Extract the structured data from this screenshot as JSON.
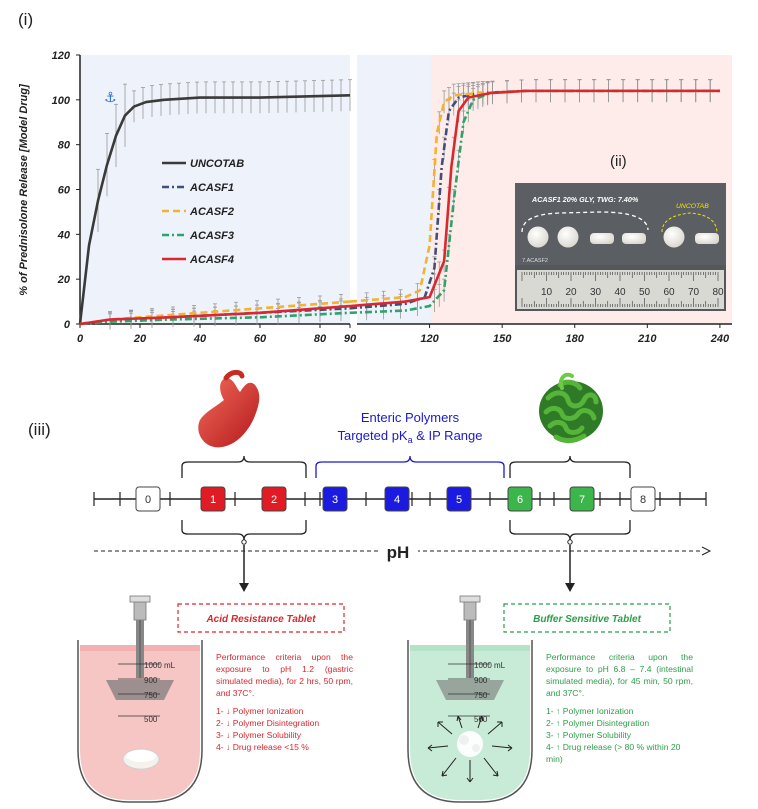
{
  "panel_labels": {
    "i": "(i)",
    "ii": "(ii)",
    "iii": "(iii)"
  },
  "chart_data": {
    "type": "line",
    "ylabel": "% of Prednisolone Release [Model Drug]",
    "xlabel": "",
    "ylim": [
      0,
      120
    ],
    "y_ticks": [
      0,
      20,
      40,
      60,
      80,
      100,
      120
    ],
    "x_ticks_left": [
      0,
      20,
      40,
      60,
      80
    ],
    "x_ticks_right": [
      90,
      120,
      150,
      180,
      210,
      240
    ],
    "broken_x_axis": true,
    "acid_phase_x": [
      0,
      120
    ],
    "buffer_phase_x": [
      120,
      245
    ],
    "legend_position": "center-left",
    "grid": false,
    "error_bars": true,
    "series": [
      {
        "name": "UNCOTAB",
        "color": "#3a3a3a",
        "dash": "solid",
        "x": [
          0,
          3,
          6,
          9,
          12,
          15,
          18,
          22,
          28,
          40,
          60,
          90
        ],
        "y": [
          0,
          35,
          55,
          71,
          84,
          93,
          97,
          99,
          100,
          101,
          101,
          102
        ]
      },
      {
        "name": "ACASF1",
        "color": "#3e4f7c",
        "dash": "dashdot",
        "x": [
          0,
          10,
          30,
          60,
          90,
          110,
          118,
          122,
          125,
          128,
          132,
          140,
          160,
          200,
          240
        ],
        "y": [
          0,
          1.5,
          3,
          5,
          7,
          9,
          12,
          25,
          70,
          95,
          101,
          103,
          104,
          104,
          104
        ]
      },
      {
        "name": "ACASF2",
        "color": "#f2b233",
        "dash": "dashed",
        "x": [
          0,
          10,
          30,
          60,
          90,
          110,
          116,
          120,
          123,
          126,
          130,
          140,
          160,
          200,
          240
        ],
        "y": [
          0,
          2,
          4,
          7,
          10,
          12,
          15,
          35,
          85,
          99,
          102,
          103,
          104,
          104,
          104
        ]
      },
      {
        "name": "ACASF3",
        "color": "#2fa36b",
        "dash": "dashdot",
        "x": [
          0,
          10,
          30,
          60,
          90,
          110,
          120,
          126,
          130,
          134,
          138,
          145,
          160,
          200,
          240
        ],
        "y": [
          0,
          1,
          2,
          3,
          5,
          6,
          8,
          15,
          55,
          90,
          100,
          103,
          104,
          104,
          104
        ]
      },
      {
        "name": "ACASF4",
        "color": "#d9282f",
        "dash": "solid",
        "x": [
          0,
          10,
          30,
          60,
          90,
          110,
          120,
          126,
          129,
          132,
          136,
          145,
          160,
          200,
          240
        ],
        "y": [
          0,
          2,
          3,
          5,
          8,
          10,
          12,
          28,
          70,
          95,
          101,
          103,
          104,
          104,
          104
        ]
      }
    ]
  },
  "photo": {
    "caption_left": "ACASF1 20% GLY, TWG: 7.40%",
    "caption_right": "UNCOTAB",
    "tablet_tag": "7.ACASF2",
    "ruler_numbers": [
      "10",
      "20",
      "30",
      "40",
      "50",
      "60",
      "70",
      "80"
    ]
  },
  "scheme": {
    "enteric_title_line1": "Enteric Polymers",
    "enteric_title_line2_pre": "Targeted pK",
    "enteric_title_line2_sub": "a",
    "enteric_title_line2_post": " & IP Range",
    "ph_label": "pH",
    "ph_boxes": [
      {
        "label": "0",
        "color": "#ffffff",
        "text_color": "#333333"
      },
      {
        "label": "1",
        "color": "#e01b24",
        "text_color": "#ffffff"
      },
      {
        "label": "2",
        "color": "#e01b24",
        "text_color": "#ffffff"
      },
      {
        "label": "3",
        "color": "#1a1ae0",
        "text_color": "#ffffff"
      },
      {
        "label": "4",
        "color": "#1a1ae0",
        "text_color": "#ffffff"
      },
      {
        "label": "5",
        "color": "#1a1ae0",
        "text_color": "#ffffff"
      },
      {
        "label": "6",
        "color": "#3cb54a",
        "text_color": "#ffffff"
      },
      {
        "label": "7",
        "color": "#3cb54a",
        "text_color": "#ffffff"
      },
      {
        "label": "8",
        "color": "#ffffff",
        "text_color": "#333333"
      }
    ],
    "acid_title": "Acid Resistance Tablet",
    "buffer_title": "Buffer Sensitive Tablet",
    "vessel_marks": [
      "1000 mL",
      "900",
      "750",
      "500"
    ],
    "acid_text": "Performance criteria upon the exposure to pH 1.2 (gastric simulated media), for 2 hrs, 50 rpm, and 37C°.",
    "acid_items": [
      "1- ↓ Polymer Ionization",
      "2- ↓ Polymer Disintegration",
      "3- ↓ Polymer Solubility",
      "4- ↓ Drug release <15 %"
    ],
    "buffer_text": "Performance criteria upon the exposure to pH 6.8 – 7.4 (intestinal simulated media), for 45 min, 50 rpm, and 37C°.",
    "buffer_items": [
      "1- ↑ Polymer Ionization",
      "2- ↑ Polymer Disintegration",
      "3- ↑ Polymer Solubility",
      "4- ↑ Drug release (> 80 % within 20 min)"
    ],
    "colors": {
      "acid": "#d9282f",
      "buffer": "#2e9e4a",
      "enteric": "#1a1ae0"
    }
  }
}
